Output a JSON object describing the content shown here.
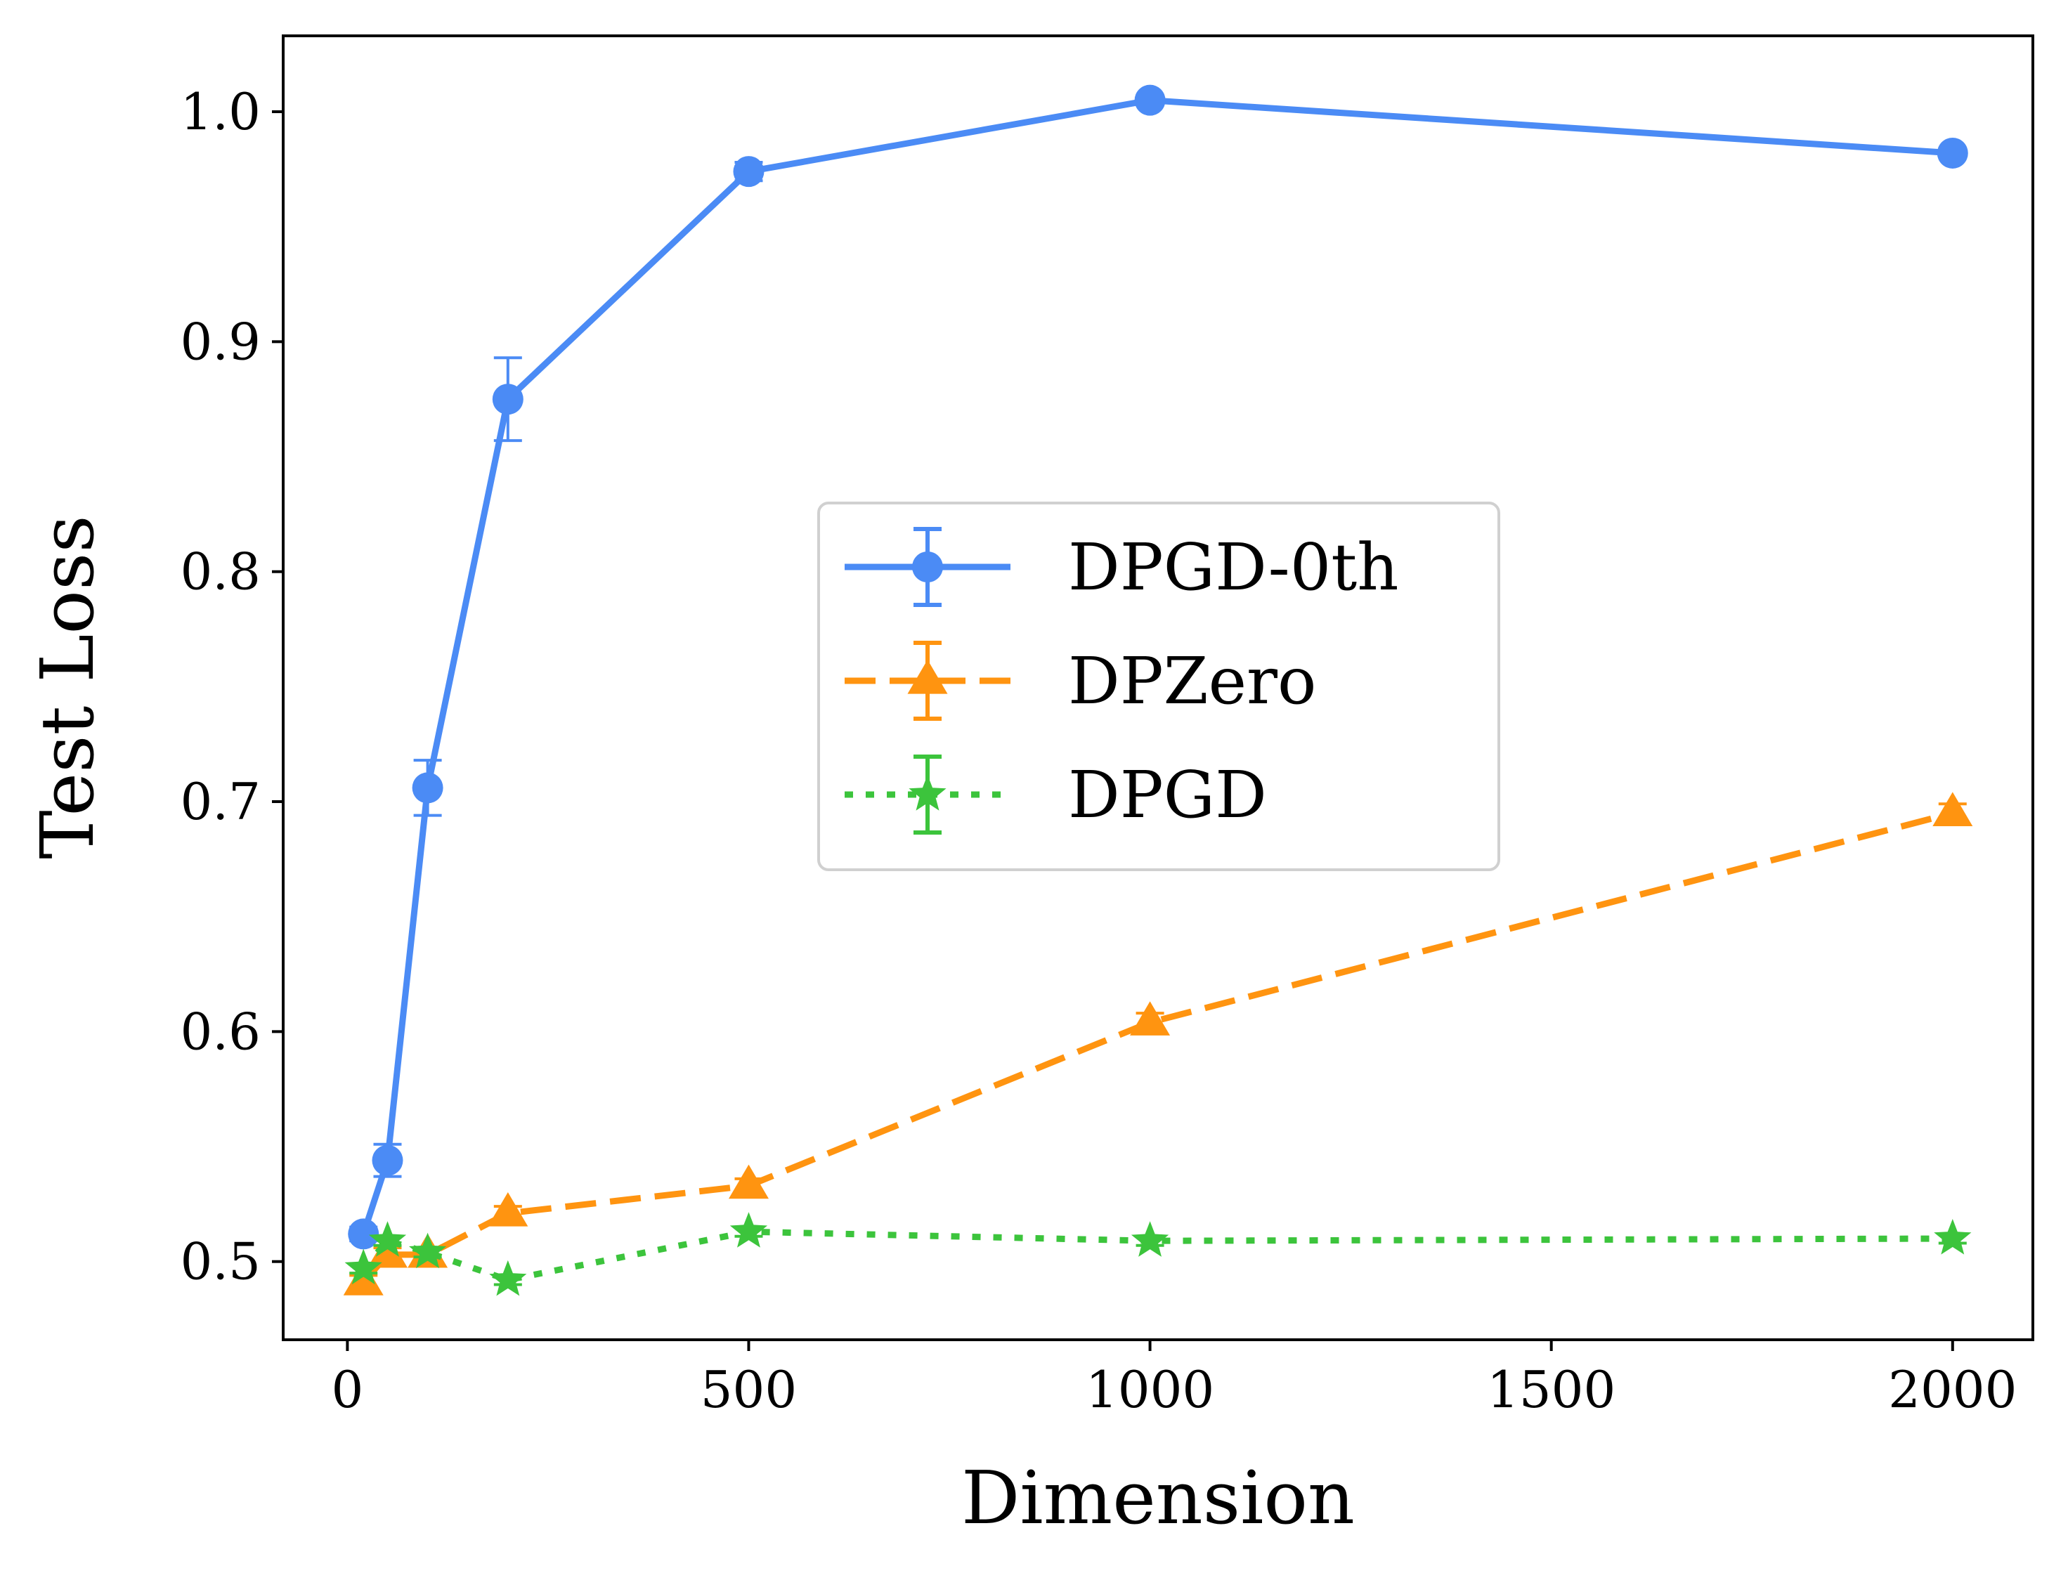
{
  "chart_data": {
    "type": "line",
    "title": "",
    "xlabel": "Dimension",
    "ylabel": "Test Loss",
    "xlim": [
      -80,
      2100
    ],
    "ylim": [
      0.466,
      1.033
    ],
    "xticks": [
      0,
      500,
      1000,
      1500,
      2000
    ],
    "xtick_labels": [
      "0",
      "500",
      "1000",
      "1500",
      "2000"
    ],
    "yticks": [
      0.5,
      0.6,
      0.7,
      0.8,
      0.9,
      1.0
    ],
    "ytick_labels": [
      "0.5",
      "0.6",
      "0.7",
      "0.8",
      "0.9",
      "1.0"
    ],
    "grid": false,
    "legend_position": "center",
    "series": [
      {
        "name": "DPGD-0th",
        "color": "#4b8bf5",
        "line_style": "solid",
        "marker": "circle",
        "points": [
          {
            "x": 20,
            "y": 0.512,
            "err": 0.003
          },
          {
            "x": 50,
            "y": 0.544,
            "err": 0.007
          },
          {
            "x": 100,
            "y": 0.706,
            "err": 0.012
          },
          {
            "x": 200,
            "y": 0.875,
            "err": 0.018
          },
          {
            "x": 500,
            "y": 0.974,
            "err": 0.004
          },
          {
            "x": 1000,
            "y": 1.005,
            "err": 0.002
          },
          {
            "x": 2000,
            "y": 0.982,
            "err": 0.002
          }
        ]
      },
      {
        "name": "DPZero",
        "color": "#ff9410",
        "line_style": "dashed",
        "marker": "triangle",
        "points": [
          {
            "x": 20,
            "y": 0.491,
            "err": 0.003
          },
          {
            "x": 50,
            "y": 0.503,
            "err": 0.003
          },
          {
            "x": 100,
            "y": 0.503,
            "err": 0.003
          },
          {
            "x": 200,
            "y": 0.521,
            "err": 0.003
          },
          {
            "x": 500,
            "y": 0.533,
            "err": 0.003
          },
          {
            "x": 1000,
            "y": 0.604,
            "err": 0.004
          },
          {
            "x": 2000,
            "y": 0.695,
            "err": 0.004
          }
        ]
      },
      {
        "name": "DPGD",
        "color": "#3cc43c",
        "line_style": "dotted",
        "marker": "star",
        "points": [
          {
            "x": 20,
            "y": 0.497,
            "err": 0.002
          },
          {
            "x": 50,
            "y": 0.509,
            "err": 0.002
          },
          {
            "x": 100,
            "y": 0.504,
            "err": 0.002
          },
          {
            "x": 200,
            "y": 0.492,
            "err": 0.002
          },
          {
            "x": 500,
            "y": 0.513,
            "err": 0.002
          },
          {
            "x": 1000,
            "y": 0.509,
            "err": 0.002
          },
          {
            "x": 2000,
            "y": 0.51,
            "err": 0.002
          }
        ]
      }
    ]
  }
}
